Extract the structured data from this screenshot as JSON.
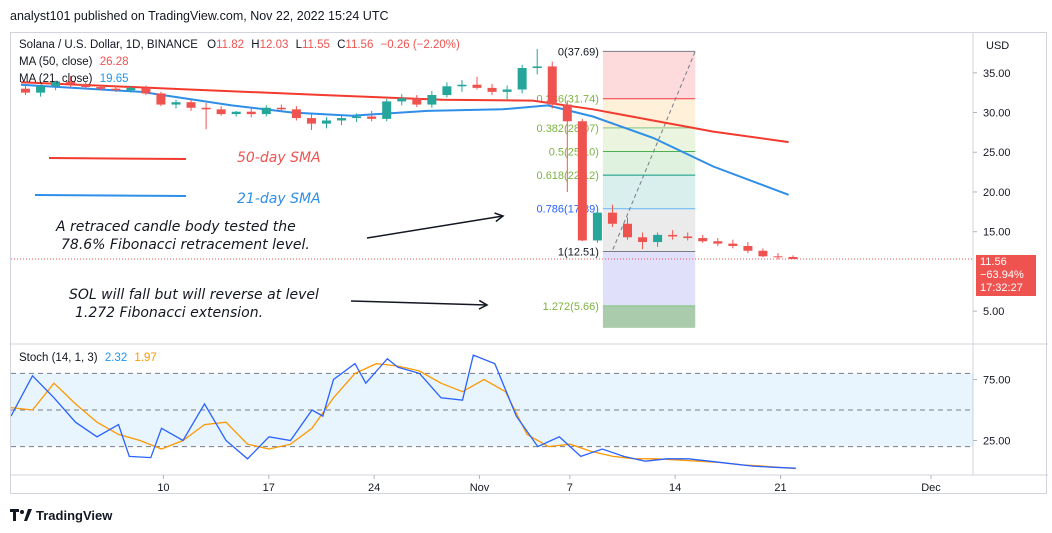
{
  "header": {
    "text": "analyst101 published on TradingView.com, Nov 22, 2022 15:24 UTC"
  },
  "legend": {
    "symbol": "Solana / U.S. Dollar, 1D, BINANCE",
    "open_label": "O",
    "open": "11.82",
    "high_label": "H",
    "high": "12.03",
    "low_label": "L",
    "low": "11.55",
    "close_label": "C",
    "close": "11.56",
    "change": "−0.26 (−2.20%)",
    "ma50_label": "MA (50, close)",
    "ma50_value": "26.28",
    "ma21_label": "MA (21, close)",
    "ma21_value": "19.65",
    "stoch_label": "Stoch (14, 1, 3)",
    "stoch_k": "2.32",
    "stoch_d": "1.97"
  },
  "price_badge": {
    "price": "11.56",
    "change": "−63.94%",
    "countdown": "17:32:27"
  },
  "annotations": {
    "sma50": "50-day SMA",
    "sma21": "21-day SMA",
    "note1_line1": "A retraced candle body tested the",
    "note1_line2": "78.6% Fibonacci retracement level.",
    "note2_line1": "SOL will fall but will reverse at level",
    "note2_line2": "1.272 Fibonacci extension."
  },
  "footer": {
    "brand": "TradingView"
  },
  "colors": {
    "up": "#26a69a",
    "down": "#ef5350",
    "ma50": "#f23a2e",
    "ma21": "#2e8ee8",
    "stoch_k": "#2962ff",
    "stoch_d": "#ff9800"
  },
  "chart_data": {
    "type": "candlestick",
    "currency_label": "USD",
    "price_axis": {
      "min": 2,
      "max": 39,
      "ticks": [
        5,
        15,
        20,
        25,
        30,
        35
      ],
      "tick_labels": [
        "5.00",
        "15.00",
        "20.00",
        "25.00",
        "30.00",
        "35.00"
      ]
    },
    "stoch_axis": {
      "min": 0,
      "max": 100,
      "ticks": [
        25,
        75
      ],
      "tick_labels": [
        "25.00",
        "75.00"
      ],
      "band": [
        20,
        80
      ]
    },
    "x_ticks": [
      {
        "index": 9,
        "label": "10"
      },
      {
        "index": 16,
        "label": "17"
      },
      {
        "index": 23,
        "label": "24"
      },
      {
        "index": 30,
        "label": "Nov"
      },
      {
        "index": 36,
        "label": "7"
      },
      {
        "index": 43,
        "label": "14"
      },
      {
        "index": 50,
        "label": "21"
      },
      {
        "index": 60,
        "label": "Dec"
      }
    ],
    "candles": [
      [
        33.0,
        33.6,
        32.2,
        32.5
      ],
      [
        32.5,
        33.5,
        32.0,
        33.3
      ],
      [
        33.3,
        34.0,
        32.8,
        33.9
      ],
      [
        33.9,
        34.6,
        33.2,
        33.6
      ],
      [
        33.6,
        33.9,
        32.9,
        33.2
      ],
      [
        33.2,
        33.5,
        32.8,
        33.0
      ],
      [
        33.0,
        33.4,
        32.6,
        32.8
      ],
      [
        32.8,
        33.3,
        32.5,
        33.1
      ],
      [
        33.1,
        33.4,
        32.2,
        32.4
      ],
      [
        32.4,
        32.6,
        30.8,
        31.0
      ],
      [
        31.0,
        31.6,
        30.5,
        31.3
      ],
      [
        31.3,
        31.6,
        30.2,
        30.6
      ],
      [
        30.6,
        31.2,
        27.9,
        30.4
      ],
      [
        30.4,
        30.8,
        29.6,
        29.8
      ],
      [
        29.8,
        30.2,
        29.5,
        30.1
      ],
      [
        30.1,
        30.5,
        29.4,
        29.8
      ],
      [
        29.8,
        30.9,
        29.5,
        30.6
      ],
      [
        30.6,
        31.0,
        30.1,
        30.4
      ],
      [
        30.4,
        30.8,
        29.0,
        29.3
      ],
      [
        29.3,
        29.8,
        27.8,
        28.6
      ],
      [
        28.6,
        29.4,
        28.0,
        29.0
      ],
      [
        29.0,
        29.6,
        28.4,
        29.3
      ],
      [
        29.3,
        29.9,
        28.8,
        29.5
      ],
      [
        29.5,
        30.2,
        28.9,
        29.2
      ],
      [
        29.2,
        31.7,
        28.9,
        31.4
      ],
      [
        31.4,
        32.3,
        30.9,
        31.8
      ],
      [
        31.8,
        32.2,
        30.7,
        31.0
      ],
      [
        31.0,
        32.7,
        30.6,
        32.2
      ],
      [
        32.2,
        33.8,
        31.9,
        33.3
      ],
      [
        33.3,
        34.1,
        32.6,
        33.5
      ],
      [
        33.5,
        34.5,
        32.9,
        33.1
      ],
      [
        33.1,
        33.6,
        32.2,
        32.6
      ],
      [
        32.6,
        33.4,
        31.6,
        32.9
      ],
      [
        32.9,
        36.0,
        32.4,
        35.6
      ],
      [
        35.6,
        38.0,
        34.8,
        35.8
      ],
      [
        35.8,
        36.4,
        30.5,
        31.0
      ],
      [
        31.0,
        31.5,
        20.0,
        28.9
      ],
      [
        28.9,
        29.2,
        13.8,
        13.9
      ],
      [
        13.9,
        18.2,
        13.6,
        17.4
      ],
      [
        17.4,
        18.4,
        15.6,
        16.0
      ],
      [
        16.0,
        16.8,
        14.0,
        14.3
      ],
      [
        14.3,
        14.9,
        12.8,
        13.7
      ],
      [
        13.7,
        14.9,
        13.1,
        14.6
      ],
      [
        14.6,
        15.2,
        14.0,
        14.4
      ],
      [
        14.4,
        14.9,
        13.9,
        14.2
      ],
      [
        14.2,
        14.6,
        13.6,
        13.8
      ],
      [
        13.8,
        14.2,
        13.2,
        13.5
      ],
      [
        13.5,
        14.0,
        12.9,
        13.2
      ],
      [
        13.2,
        13.7,
        12.3,
        12.6
      ],
      [
        12.6,
        12.9,
        11.8,
        11.9
      ],
      [
        11.9,
        12.3,
        11.5,
        11.82
      ],
      [
        11.82,
        12.03,
        11.55,
        11.56
      ]
    ],
    "ma50": [
      [
        0,
        33.8
      ],
      [
        10,
        33.0
      ],
      [
        20,
        32.2
      ],
      [
        28,
        31.6
      ],
      [
        34,
        31.5
      ],
      [
        38,
        30.4
      ],
      [
        42,
        29.0
      ],
      [
        46,
        27.6
      ],
      [
        51,
        26.28
      ]
    ],
    "ma21": [
      [
        0,
        33.5
      ],
      [
        8,
        32.6
      ],
      [
        14,
        30.9
      ],
      [
        18,
        30.0
      ],
      [
        22,
        29.6
      ],
      [
        27,
        30.2
      ],
      [
        32,
        30.4
      ],
      [
        35,
        30.9
      ],
      [
        38,
        29.5
      ],
      [
        42,
        26.8
      ],
      [
        46,
        23.2
      ],
      [
        51,
        19.65
      ]
    ],
    "fibonacci": {
      "start_index": 38.2,
      "end_index": 44.8,
      "levels": [
        {
          "ratio": "0",
          "price": 37.69,
          "label": "0(37.69)"
        },
        {
          "ratio": "0.236",
          "price": 31.74,
          "label": "0.236(31.74)"
        },
        {
          "ratio": "0.382",
          "price": 28.07,
          "label": "0.382(28.07)"
        },
        {
          "ratio": "0.5",
          "price": 25.1,
          "label": "0.5(25.10)"
        },
        {
          "ratio": "0.618",
          "price": 22.12,
          "label": "0.618(22.12)"
        },
        {
          "ratio": "0.786",
          "price": 17.89,
          "label": "0.786(17.89)"
        },
        {
          "ratio": "1",
          "price": 12.51,
          "label": "1(12.51)"
        },
        {
          "ratio": "1.272",
          "price": 5.66,
          "label": "1.272(5.66)"
        }
      ],
      "extension_bottom": 2.9
    },
    "stoch_k": [
      [
        0,
        45
      ],
      [
        2,
        78
      ],
      [
        4,
        60
      ],
      [
        6,
        40
      ],
      [
        8,
        28
      ],
      [
        10,
        38
      ],
      [
        11,
        12
      ],
      [
        13,
        11
      ],
      [
        14,
        35
      ],
      [
        16,
        25
      ],
      [
        18,
        55
      ],
      [
        20,
        25
      ],
      [
        22,
        10
      ],
      [
        24,
        28
      ],
      [
        26,
        25
      ],
      [
        28,
        50
      ],
      [
        29,
        45
      ],
      [
        30,
        75
      ],
      [
        32,
        88
      ],
      [
        33,
        72
      ],
      [
        35,
        92
      ],
      [
        36,
        85
      ],
      [
        38,
        80
      ],
      [
        40,
        60
      ],
      [
        42,
        58
      ],
      [
        43,
        95
      ],
      [
        45,
        88
      ],
      [
        47,
        45
      ],
      [
        49,
        20
      ],
      [
        51,
        28
      ],
      [
        53,
        12
      ],
      [
        55,
        18
      ],
      [
        57,
        12
      ],
      [
        59,
        8
      ],
      [
        61,
        10
      ],
      [
        63,
        10
      ],
      [
        65,
        8
      ],
      [
        67,
        6
      ],
      [
        69,
        4
      ],
      [
        71,
        3
      ],
      [
        73,
        2.32
      ]
    ],
    "stoch_d": [
      [
        0,
        52
      ],
      [
        2,
        50
      ],
      [
        4,
        72
      ],
      [
        6,
        55
      ],
      [
        8,
        40
      ],
      [
        10,
        30
      ],
      [
        12,
        25
      ],
      [
        14,
        18
      ],
      [
        16,
        25
      ],
      [
        18,
        38
      ],
      [
        20,
        40
      ],
      [
        22,
        22
      ],
      [
        24,
        18
      ],
      [
        26,
        22
      ],
      [
        28,
        35
      ],
      [
        30,
        60
      ],
      [
        32,
        80
      ],
      [
        34,
        88
      ],
      [
        36,
        86
      ],
      [
        38,
        82
      ],
      [
        40,
        72
      ],
      [
        42,
        65
      ],
      [
        44,
        75
      ],
      [
        46,
        65
      ],
      [
        48,
        30
      ],
      [
        50,
        20
      ],
      [
        52,
        22
      ],
      [
        54,
        16
      ],
      [
        56,
        12
      ],
      [
        58,
        10
      ],
      [
        60,
        10
      ],
      [
        62,
        9
      ],
      [
        64,
        8
      ],
      [
        66,
        7
      ],
      [
        68,
        5
      ],
      [
        70,
        4
      ],
      [
        73,
        1.97
      ]
    ],
    "stoch_x_scale_note": ""
  }
}
